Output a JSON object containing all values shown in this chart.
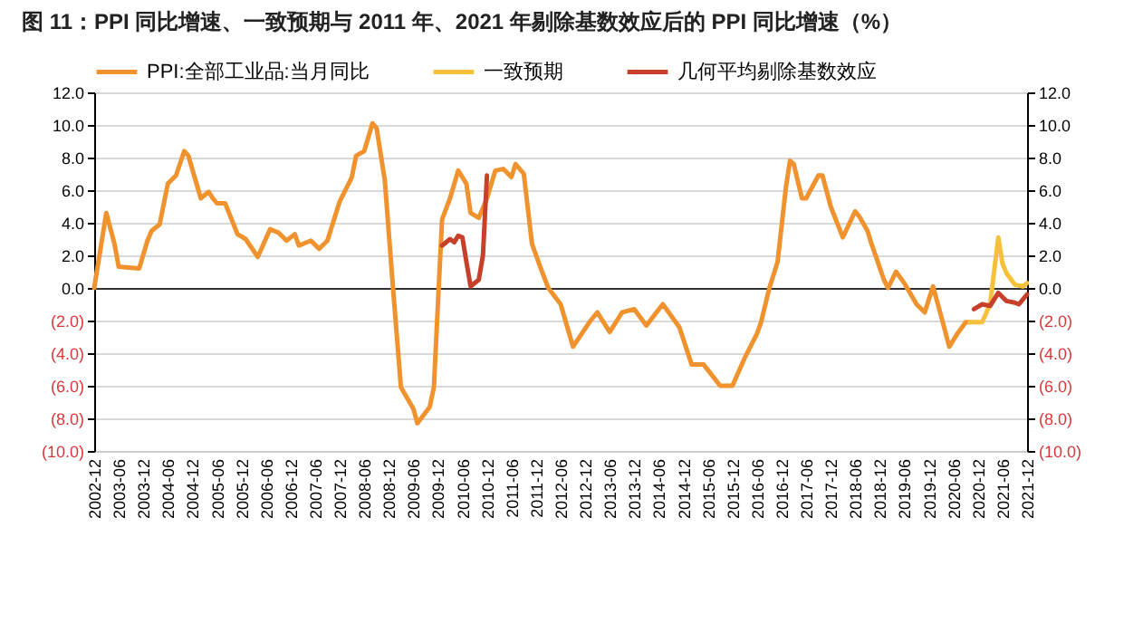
{
  "chart_data": {
    "type": "line",
    "title": "图 11：PPI 同比增速、一致预期与 2011 年、2021 年剔除基数效应后的 PPI 同比增速（%）",
    "xlim": [
      "2002-12",
      "2021-12"
    ],
    "xticks": [
      "2002-12",
      "2003-06",
      "2003-12",
      "2004-06",
      "2004-12",
      "2005-06",
      "2005-12",
      "2006-06",
      "2006-12",
      "2007-06",
      "2007-12",
      "2008-06",
      "2008-12",
      "2009-06",
      "2009-12",
      "2010-06",
      "2010-12",
      "2011-06",
      "2011-12",
      "2012-06",
      "2012-12",
      "2013-06",
      "2013-12",
      "2014-06",
      "2014-12",
      "2015-06",
      "2015-12",
      "2016-06",
      "2016-12",
      "2017-06",
      "2017-12",
      "2018-06",
      "2018-12",
      "2019-06",
      "2019-12",
      "2020-06",
      "2020-12",
      "2021-06",
      "2021-12"
    ],
    "ylim": [
      -10,
      12
    ],
    "yticks": [
      {
        "value": 12,
        "label": "12.0"
      },
      {
        "value": 10,
        "label": "10.0"
      },
      {
        "value": 8,
        "label": "8.0"
      },
      {
        "value": 6,
        "label": "6.0"
      },
      {
        "value": 4,
        "label": "4.0"
      },
      {
        "value": 2,
        "label": "2.0"
      },
      {
        "value": 0,
        "label": "0.0"
      },
      {
        "value": -2,
        "label": "(2.0)"
      },
      {
        "value": -4,
        "label": "(4.0)"
      },
      {
        "value": -6,
        "label": "(6.0)"
      },
      {
        "value": -8,
        "label": "(8.0)"
      },
      {
        "value": -10,
        "label": "(10.0)"
      }
    ],
    "y2lim": [
      -10,
      12
    ],
    "y2ticks": [
      {
        "value": 12,
        "label": "12.0"
      },
      {
        "value": 10,
        "label": "10.0"
      },
      {
        "value": 8,
        "label": "8.0"
      },
      {
        "value": 6,
        "label": "6.0"
      },
      {
        "value": 4,
        "label": "4.0"
      },
      {
        "value": 2,
        "label": "2.0"
      },
      {
        "value": 0,
        "label": "0.0"
      },
      {
        "value": -2,
        "label": "(2.0)"
      },
      {
        "value": -4,
        "label": "(4.0)"
      },
      {
        "value": -6,
        "label": "(6.0)"
      },
      {
        "value": -8,
        "label": "(8.0)"
      },
      {
        "value": -10,
        "label": "(10.0)"
      }
    ],
    "grid": "y",
    "legend": "top",
    "series": [
      {
        "name": "PPI:全部工业品:当月同比",
        "color": "#f0922e",
        "x": [
          "2002-12",
          "2003-03",
          "2003-05",
          "2003-06",
          "2003-11",
          "2004-01",
          "2004-02",
          "2004-04",
          "2004-06",
          "2004-08",
          "2004-10",
          "2004-11",
          "2005-02",
          "2005-04",
          "2005-05",
          "2005-06",
          "2005-08",
          "2005-11",
          "2006-01",
          "2006-04",
          "2006-07",
          "2006-09",
          "2006-11",
          "2007-01",
          "2007-02",
          "2007-05",
          "2007-07",
          "2007-09",
          "2007-12",
          "2008-03",
          "2008-04",
          "2008-06",
          "2008-08",
          "2008-09",
          "2008-11",
          "2009-01",
          "2009-02",
          "2009-03",
          "2009-06",
          "2009-07",
          "2009-10",
          "2009-11",
          "2009-12",
          "2010-01",
          "2010-03",
          "2010-05",
          "2010-07",
          "2010-08",
          "2010-10",
          "2010-12",
          "2011-02",
          "2011-04",
          "2011-06",
          "2011-07",
          "2011-09",
          "2011-11",
          "2012-01",
          "2012-03",
          "2012-06",
          "2012-09",
          "2013-01",
          "2013-03",
          "2013-06",
          "2013-09",
          "2013-12",
          "2014-03",
          "2014-07",
          "2014-11",
          "2015-02",
          "2015-05",
          "2015-09",
          "2015-12",
          "2016-03",
          "2016-06",
          "2016-07",
          "2016-09",
          "2016-11",
          "2017-01",
          "2017-02",
          "2017-03",
          "2017-05",
          "2017-06",
          "2017-09",
          "2017-10",
          "2017-12",
          "2018-03",
          "2018-06",
          "2018-07",
          "2018-09",
          "2018-10",
          "2019-01",
          "2019-02",
          "2019-04",
          "2019-06",
          "2019-09",
          "2019-11",
          "2020-01",
          "2020-03",
          "2020-05",
          "2020-07",
          "2020-09",
          "2020-10"
        ],
        "values": [
          0.0,
          4.6,
          2.7,
          1.3,
          1.2,
          2.9,
          3.5,
          3.9,
          6.4,
          6.9,
          8.4,
          8.1,
          5.5,
          5.9,
          5.5,
          5.2,
          5.2,
          3.3,
          3.0,
          1.9,
          3.6,
          3.4,
          2.9,
          3.3,
          2.6,
          2.9,
          2.4,
          2.9,
          5.3,
          6.8,
          8.1,
          8.4,
          10.1,
          9.8,
          6.6,
          0.0,
          -3.2,
          -6.1,
          -7.4,
          -8.3,
          -7.3,
          -6.1,
          -1.0,
          4.2,
          5.5,
          7.2,
          6.4,
          4.6,
          4.3,
          5.5,
          7.2,
          7.3,
          6.8,
          7.6,
          7.0,
          2.7,
          1.3,
          0.0,
          -1.0,
          -3.6,
          -2.1,
          -1.5,
          -2.7,
          -1.5,
          -1.3,
          -2.3,
          -1.0,
          -2.4,
          -4.7,
          -4.7,
          -6.0,
          -6.0,
          -4.3,
          -2.8,
          -2.1,
          0.0,
          1.6,
          6.1,
          7.8,
          7.6,
          5.5,
          5.5,
          6.9,
          6.9,
          5.0,
          3.1,
          4.7,
          4.4,
          3.5,
          2.7,
          0.5,
          0.0,
          1.0,
          0.3,
          -1.0,
          -1.5,
          0.1,
          -1.7,
          -3.6,
          -2.8,
          -2.1,
          -2.1
        ]
      },
      {
        "name": "一致预期",
        "color": "#f7c03a",
        "x": [
          "2020-10",
          "2021-01",
          "2021-03",
          "2021-05",
          "2021-06",
          "2021-07",
          "2021-09",
          "2021-11",
          "2021-12"
        ],
        "values": [
          -2.1,
          -2.1,
          -1.0,
          3.1,
          1.5,
          0.9,
          0.2,
          0.1,
          0.3
        ]
      },
      {
        "name": "几何平均剔除基数效应",
        "color": "#c9402a",
        "x": [
          "2010-01",
          "2010-03",
          "2010-04",
          "2010-05",
          "2010-06",
          "2010-07",
          "2010-08",
          "2010-10",
          "2010-11",
          "2010-12",
          "2020-10",
          "2020-11",
          "2021-01",
          "2021-03",
          "2021-05",
          "2021-07",
          "2021-09",
          "2021-10",
          "2021-12"
        ],
        "values": [
          2.6,
          3.0,
          2.8,
          3.2,
          3.1,
          1.6,
          0.1,
          0.5,
          2.0,
          6.9,
          null,
          -1.3,
          -1.0,
          -1.1,
          -0.3,
          -0.8,
          -0.9,
          -1.0,
          -0.4
        ]
      }
    ]
  }
}
